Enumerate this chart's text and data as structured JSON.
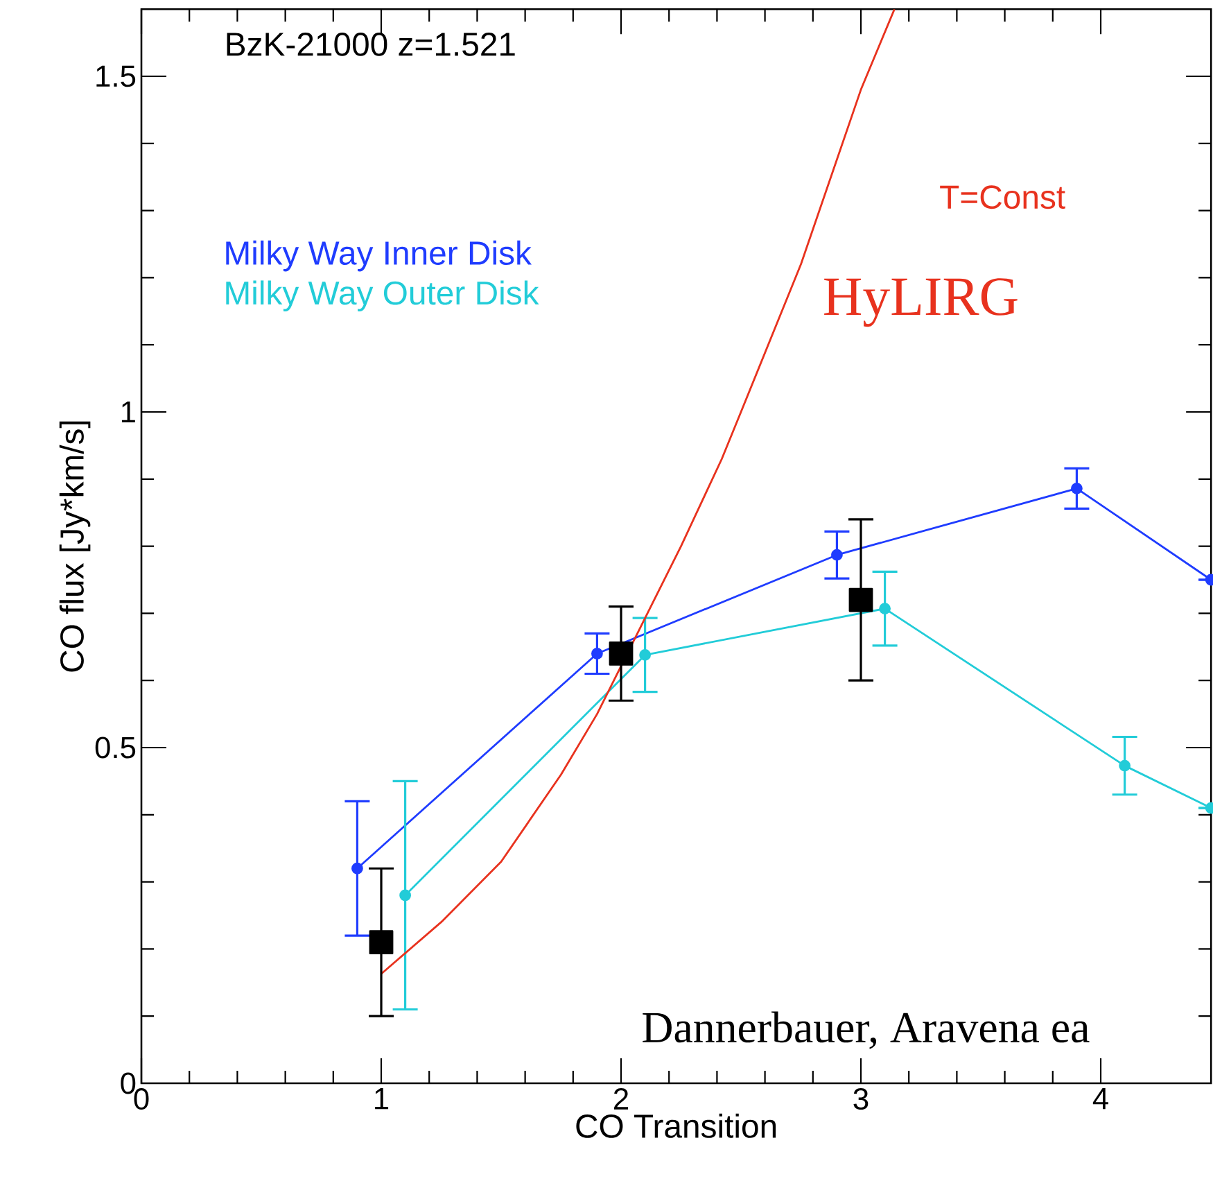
{
  "chart_data": {
    "type": "line",
    "title": "BzK-21000 z=1.521",
    "xlabel": "CO Transition",
    "ylabel": "CO flux [Jy*km/s]",
    "xlim": [
      0,
      4.46
    ],
    "ylim": [
      0,
      1.6
    ],
    "xticks": [
      0,
      1,
      2,
      3,
      4
    ],
    "yticks": [
      0,
      0.5,
      1,
      1.5
    ],
    "legend": "top left",
    "annotations": [
      "T=Const",
      "Dannerbauer, Aravena ea"
    ],
    "series": [
      {
        "name": "Milky Way Inner Disk",
        "color": "#1f3cff",
        "marker": "circle",
        "x": [
          0.9,
          1.9,
          2.9,
          3.9,
          4.46
        ],
        "values": [
          0.32,
          0.64,
          0.787,
          0.886,
          0.75
        ],
        "errors": [
          0.1,
          0.03,
          0.035,
          0.03,
          null
        ]
      },
      {
        "name": "Milky Way Outer Disk",
        "color": "#22ccd8",
        "marker": "circle",
        "x": [
          1.1,
          2.1,
          3.1,
          4.1,
          4.46
        ],
        "values": [
          0.28,
          0.638,
          0.707,
          0.473,
          0.41
        ],
        "errors": [
          0.17,
          0.055,
          0.055,
          0.043,
          null
        ]
      },
      {
        "name": "HyLIRG",
        "type": "line",
        "color": "#e8321e",
        "marker": "none",
        "x": [
          1,
          1.25,
          1.5,
          1.75,
          1.9,
          2.25,
          2.42,
          2.5,
          2.75,
          3,
          3.14
        ],
        "values": [
          0.163,
          0.24,
          0.33,
          0.46,
          0.55,
          0.8,
          0.93,
          1.0,
          1.22,
          1.48,
          1.6
        ]
      },
      {
        "type": "scatter",
        "color": "#000000",
        "marker": "square",
        "x": [
          1,
          2,
          3
        ],
        "values": [
          0.21,
          0.64,
          0.72
        ],
        "errors": [
          0.11,
          0.07,
          0.12
        ]
      }
    ]
  }
}
